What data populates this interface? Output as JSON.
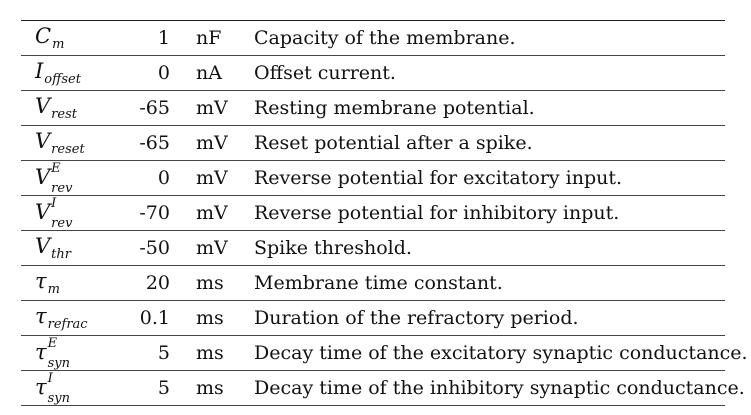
{
  "rows": [
    {
      "symbol": "C",
      "sub": "m",
      "sup": "",
      "value": "1",
      "unit": "nF",
      "description": "Capacity of the membrane."
    },
    {
      "symbol": "I",
      "sub": "offset",
      "sup": "",
      "value": "0",
      "unit": "nA",
      "description": "Offset current."
    },
    {
      "symbol": "V",
      "sub": "rest",
      "sup": "",
      "value": "-65",
      "unit": "mV",
      "description": "Resting membrane potential."
    },
    {
      "symbol": "V",
      "sub": "reset",
      "sup": "",
      "value": "-65",
      "unit": "mV",
      "description": "Reset potential after a spike."
    },
    {
      "symbol": "V",
      "sub": "rev",
      "sup": "E",
      "value": "0",
      "unit": "mV",
      "description": "Reverse potential for excitatory input."
    },
    {
      "symbol": "V",
      "sub": "rev",
      "sup": "I",
      "value": "-70",
      "unit": "mV",
      "description": "Reverse potential for inhibitory input."
    },
    {
      "symbol": "V",
      "sub": "thr",
      "sup": "",
      "value": "-50",
      "unit": "mV",
      "description": "Spike threshold."
    },
    {
      "symbol": "τ",
      "sub": "m",
      "sup": "",
      "value": "20",
      "unit": "ms",
      "description": "Membrane time constant."
    },
    {
      "symbol": "τ",
      "sub": "refrac",
      "sup": "",
      "value": "0.1",
      "unit": "ms",
      "description": "Duration of the refractory period."
    },
    {
      "symbol": "τ",
      "sub": "syn",
      "sup": "E",
      "value": "5",
      "unit": "ms",
      "description": "Decay time of the excitatory synaptic conductance."
    },
    {
      "symbol": "τ",
      "sub": "syn",
      "sup": "I",
      "value": "5",
      "unit": "ms",
      "description": "Decay time of the inhibitory synaptic conductance."
    }
  ]
}
